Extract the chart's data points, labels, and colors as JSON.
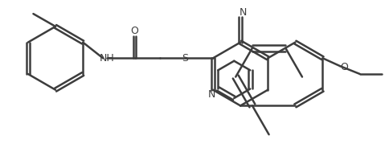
{
  "bg_color": "#ffffff",
  "line_color": "#3d3d3d",
  "line_width": 1.8,
  "figsize": [
    4.85,
    1.84
  ],
  "dpi": 100,
  "atoms": {
    "N_label": "N",
    "NH_label": "NH",
    "O_carbonyl": "O",
    "S_label": "S",
    "CN_label": "N",
    "O_ether": "O"
  }
}
